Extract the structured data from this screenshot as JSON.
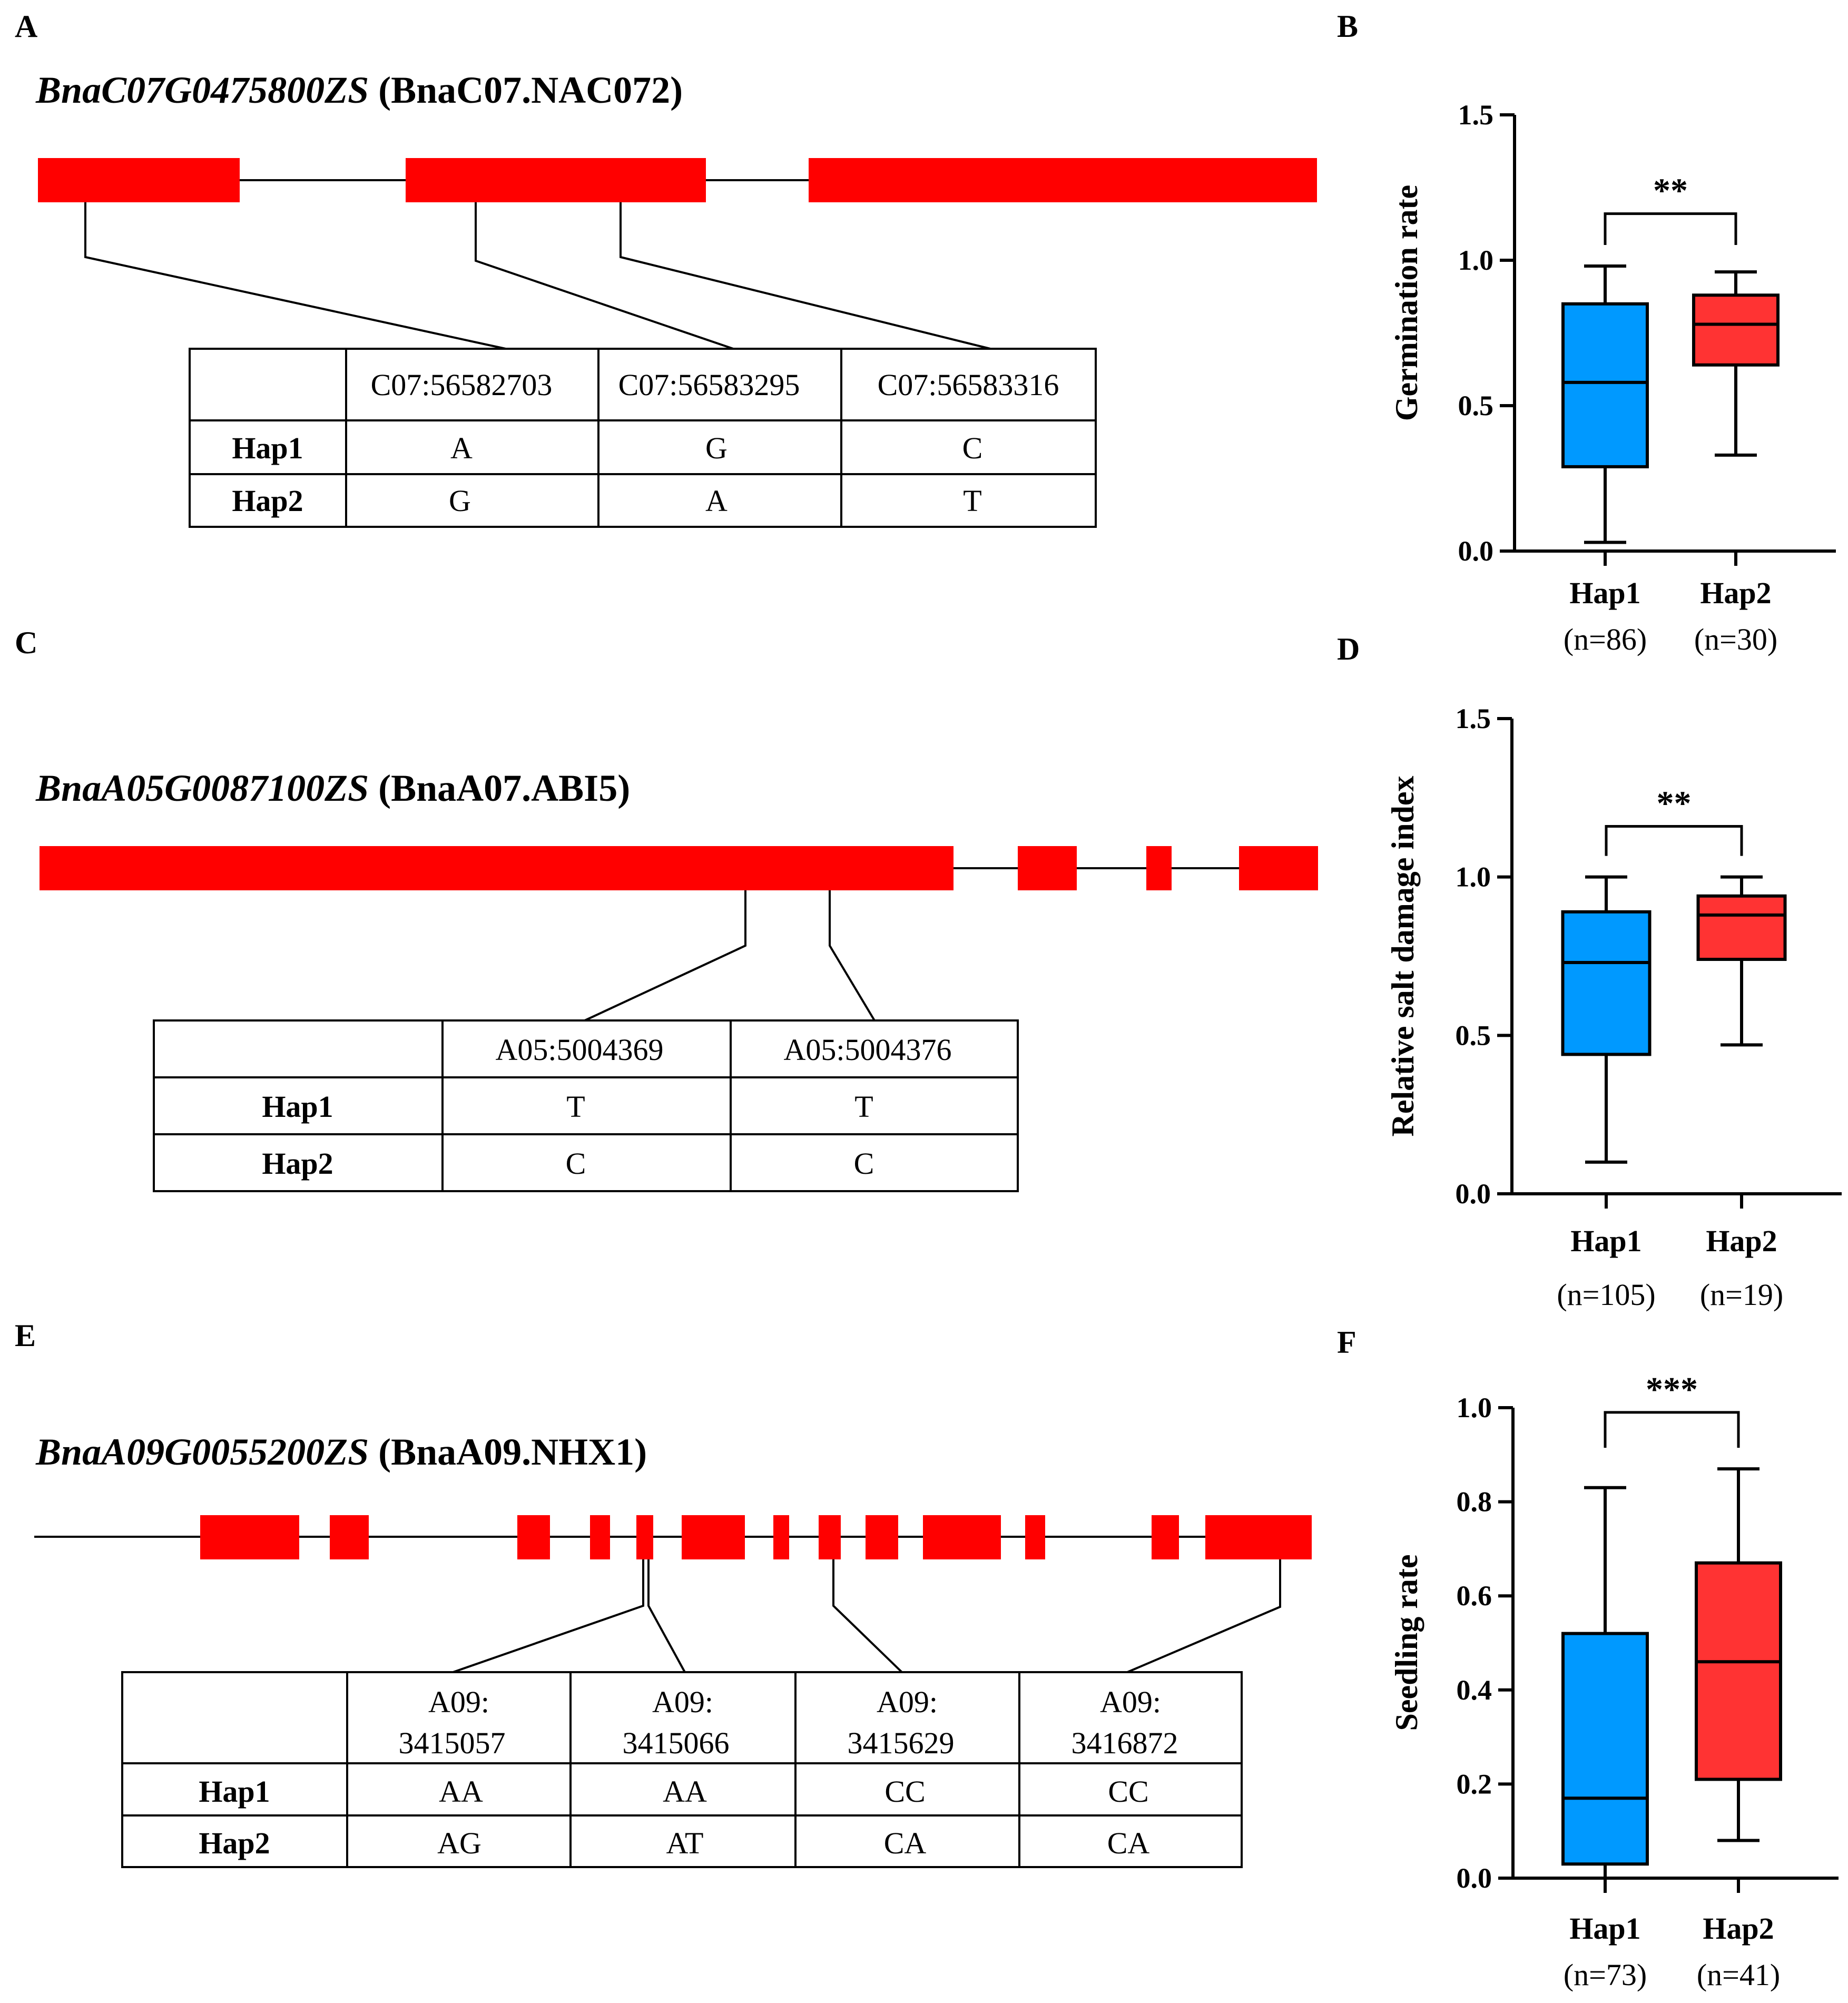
{
  "panels": {
    "A": {
      "label": "A",
      "gene_id": "BnaC07G0475800ZS",
      "gene_alias": " (BnaC07.NAC072)",
      "table": {
        "header": [
          "",
          "C07:56582703",
          "C07:56583295",
          "C07:56583316"
        ],
        "rows": [
          [
            "Hap1",
            "A",
            "G",
            "C"
          ],
          [
            "Hap2",
            "G",
            "A",
            "T"
          ]
        ]
      }
    },
    "C": {
      "label": "C",
      "gene_id": "BnaA05G0087100ZS",
      "gene_alias": " (BnaA07.ABI5)",
      "table": {
        "header": [
          "",
          "A05:5004369",
          "A05:5004376"
        ],
        "rows": [
          [
            "Hap1",
            "T",
            "T"
          ],
          [
            "Hap2",
            "C",
            "C"
          ]
        ]
      }
    },
    "E": {
      "label": "E",
      "gene_id": "BnaA09G0055200ZS",
      "gene_alias": " (BnaA09.NHX1)",
      "table": {
        "header_line1": [
          "",
          "A09:",
          "A09:",
          "A09:",
          "A09:"
        ],
        "header_line2": [
          "",
          "3415057",
          "3415066",
          "3415629",
          "3416872"
        ],
        "rows": [
          [
            "Hap1",
            "AA",
            "AA",
            "CC",
            "CC"
          ],
          [
            "Hap2",
            "AG",
            "AT",
            "CA",
            "CA"
          ]
        ]
      }
    }
  },
  "colors": {
    "exon": "#ff0000",
    "hap1_fill": "#0099ff",
    "hap2_fill": "#ff3333"
  },
  "chart_data": [
    {
      "panel": "B",
      "label": "B",
      "type": "box",
      "ylabel": "Germination  rate",
      "ylim": [
        0,
        1.5
      ],
      "yticks": [
        "0.0",
        "0.5",
        "1.0",
        "1.5"
      ],
      "categories": [
        "Hap1",
        "Hap2"
      ],
      "n_labels": [
        "(n=86)",
        "(n=30)"
      ],
      "boxes": [
        {
          "min": 0.03,
          "q1": 0.29,
          "median": 0.58,
          "q3": 0.85,
          "max": 0.98
        },
        {
          "min": 0.33,
          "q1": 0.64,
          "median": 0.78,
          "q3": 0.88,
          "max": 0.96
        }
      ],
      "significance": "**",
      "sig_y": 1.16
    },
    {
      "panel": "D",
      "label": "D",
      "type": "box",
      "ylabel": "Relative salt damage index",
      "ylim": [
        0,
        1.5
      ],
      "yticks": [
        "0.0",
        "0.5",
        "1.0",
        "1.5"
      ],
      "categories": [
        "Hap1",
        "Hap2"
      ],
      "n_labels": [
        "(n=105)",
        "(n=19)"
      ],
      "boxes": [
        {
          "min": 0.1,
          "q1": 0.44,
          "median": 0.73,
          "q3": 0.89,
          "max": 1.0
        },
        {
          "min": 0.47,
          "q1": 0.74,
          "median": 0.88,
          "q3": 0.94,
          "max": 1.0
        }
      ],
      "significance": "**",
      "sig_y": 1.16
    },
    {
      "panel": "F",
      "label": "F",
      "type": "box",
      "ylabel": "Seedling  rate",
      "ylim": [
        0,
        1.0
      ],
      "yticks": [
        "0.0",
        "0.2",
        "0.4",
        "0.6",
        "0.8",
        "1.0"
      ],
      "categories": [
        "Hap1",
        "Hap2"
      ],
      "n_labels": [
        "(n=73)",
        "(n=41)"
      ],
      "boxes": [
        {
          "min": 0.0,
          "q1": 0.03,
          "median": 0.17,
          "q3": 0.52,
          "max": 0.83
        },
        {
          "min": 0.08,
          "q1": 0.21,
          "median": 0.46,
          "q3": 0.67,
          "max": 0.87
        }
      ],
      "significance": "***",
      "sig_y": 0.99
    }
  ]
}
